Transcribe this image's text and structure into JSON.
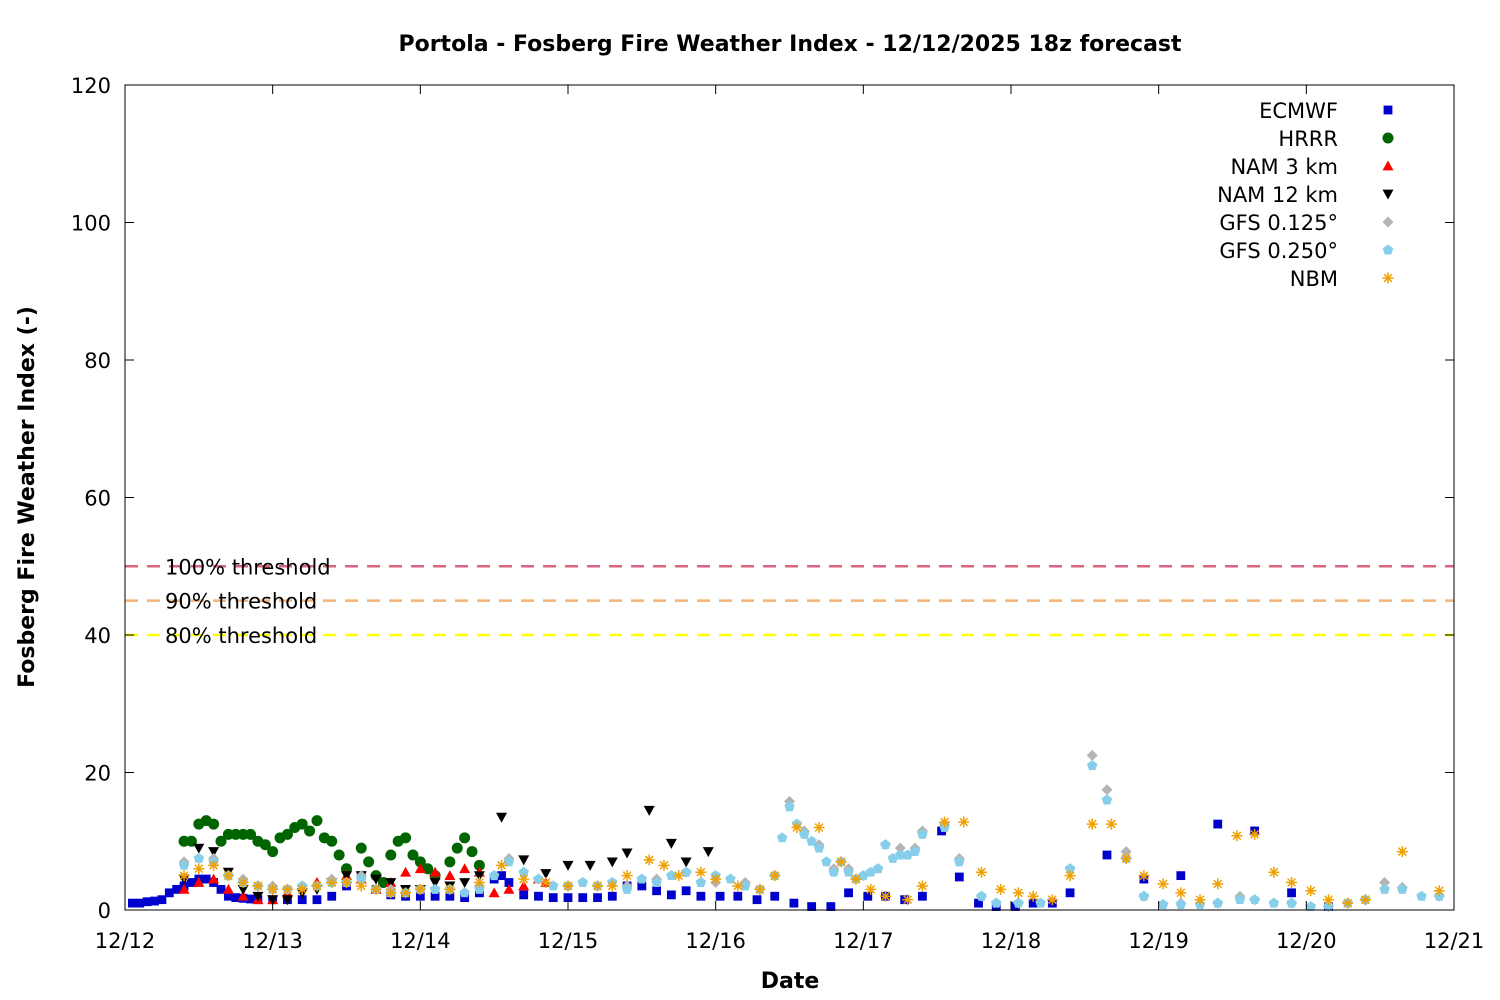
{
  "chart_data": {
    "type": "scatter",
    "title": "Portola - Fosberg Fire Weather Index - 12/12/2025 18z forecast",
    "xlabel": "Date",
    "ylabel": "Fosberg Fire Weather Index (-)",
    "xlim": [
      12,
      21
    ],
    "xticks": [
      {
        "value": 12,
        "label": "12/12"
      },
      {
        "value": 13,
        "label": "12/13"
      },
      {
        "value": 14,
        "label": "12/14"
      },
      {
        "value": 15,
        "label": "12/15"
      },
      {
        "value": 16,
        "label": "12/16"
      },
      {
        "value": 17,
        "label": "12/17"
      },
      {
        "value": 18,
        "label": "12/18"
      },
      {
        "value": 19,
        "label": "12/19"
      },
      {
        "value": 20,
        "label": "12/20"
      },
      {
        "value": 21,
        "label": "12/21"
      }
    ],
    "ylim": [
      0,
      120
    ],
    "yticks": [
      0,
      20,
      40,
      60,
      80,
      100,
      120
    ],
    "legend": "upper right",
    "thresholds": [
      {
        "label": "100% threshold",
        "value": 50,
        "color": "#d9667f"
      },
      {
        "label": "90% threshold",
        "value": 45,
        "color": "#f2b478"
      },
      {
        "label": "80% threshold",
        "value": 40,
        "color": "#ffff00"
      }
    ],
    "series": [
      {
        "name": "ECMWF",
        "color": "#0000cc",
        "marker": "square",
        "x": [
          12.05,
          12.1,
          12.15,
          12.2,
          12.25,
          12.3,
          12.35,
          12.4,
          12.45,
          12.5,
          12.55,
          12.6,
          12.65,
          12.7,
          12.75,
          12.8,
          12.85,
          12.9,
          13.0,
          13.1,
          13.2,
          13.3,
          13.4,
          13.5,
          13.6,
          13.7,
          13.8,
          13.9,
          14.0,
          14.1,
          14.2,
          14.3,
          14.4,
          14.5,
          14.55,
          14.6,
          14.7,
          14.8,
          14.9,
          15.0,
          15.1,
          15.2,
          15.3,
          15.4,
          15.5,
          15.6,
          15.7,
          15.8,
          15.9,
          16.03,
          16.15,
          16.28,
          16.4,
          16.53,
          16.65,
          16.78,
          16.9,
          17.03,
          17.15,
          17.28,
          17.4,
          17.53,
          17.65,
          17.78,
          17.9,
          18.03,
          18.15,
          18.28,
          18.4,
          18.65,
          18.9,
          19.15,
          19.4,
          19.65,
          19.9,
          20.15
        ],
        "values": [
          1,
          1,
          1.2,
          1.3,
          1.5,
          2.5,
          3,
          3.5,
          4,
          4.5,
          4.5,
          4,
          3,
          2,
          1.8,
          1.7,
          1.6,
          1.5,
          1.5,
          1.5,
          1.5,
          1.5,
          2,
          3.5,
          5,
          3,
          2.2,
          2,
          2,
          2,
          2,
          1.8,
          2.5,
          4.5,
          5,
          4,
          2.2,
          2,
          1.8,
          1.8,
          1.8,
          1.8,
          2,
          3.5,
          3.5,
          2.8,
          2.2,
          2.8,
          2,
          2,
          2,
          1.5,
          2,
          1,
          0.5,
          0.5,
          2.5,
          2,
          2,
          1.5,
          2,
          11.5,
          4.8,
          1,
          0.5,
          0.5,
          1,
          1,
          2.5,
          8,
          4.5,
          5,
          12.5,
          11.5,
          2.5,
          0.5
        ]
      },
      {
        "name": "HRRR",
        "color": "#006400",
        "marker": "circle",
        "x": [
          12.4,
          12.45,
          12.5,
          12.55,
          12.6,
          12.65,
          12.7,
          12.75,
          12.8,
          12.85,
          12.9,
          12.95,
          13.0,
          13.05,
          13.1,
          13.15,
          13.2,
          13.25,
          13.3,
          13.35,
          13.4,
          13.45,
          13.5,
          13.6,
          13.65,
          13.7,
          13.75,
          13.8,
          13.85,
          13.9,
          13.95,
          14.0,
          14.05,
          14.1,
          14.2,
          14.25,
          14.3,
          14.35,
          14.4
        ],
        "values": [
          10,
          10,
          12.5,
          13,
          12.5,
          10,
          11,
          11,
          11,
          11,
          10,
          9.5,
          8.5,
          10.5,
          11,
          12,
          12.5,
          11.5,
          13,
          10.5,
          10,
          8,
          6,
          9,
          7,
          5,
          4,
          8,
          10,
          10.5,
          8,
          7,
          6,
          5,
          7,
          9,
          10.5,
          8.5,
          6.5
        ]
      },
      {
        "name": "NAM 3 km",
        "color": "#ff0000",
        "marker": "triangle-up",
        "x": [
          12.4,
          12.5,
          12.6,
          12.7,
          12.8,
          12.9,
          13.0,
          13.1,
          13.2,
          13.3,
          13.4,
          13.5,
          13.6,
          13.7,
          13.8,
          13.9,
          14.0,
          14.1,
          14.2,
          14.3,
          14.4,
          14.5,
          14.6,
          14.7,
          14.8,
          14.85
        ],
        "values": [
          3,
          4,
          4.5,
          3,
          2,
          1.5,
          1.5,
          2.5,
          3.5,
          4,
          4.5,
          5,
          4.5,
          3,
          4,
          5.5,
          6,
          5.5,
          5,
          6,
          5.5,
          2.5,
          3,
          3.5,
          4.5,
          4
        ]
      },
      {
        "name": "NAM 12 km",
        "color": "#000000",
        "marker": "triangle-down",
        "x": [
          12.4,
          12.5,
          12.6,
          12.7,
          12.8,
          12.9,
          13.0,
          13.1,
          13.2,
          13.3,
          13.4,
          13.5,
          13.6,
          13.7,
          13.8,
          13.9,
          14.0,
          14.1,
          14.2,
          14.3,
          14.4,
          14.55,
          14.7,
          14.85,
          15.0,
          15.15,
          15.3,
          15.4,
          15.55,
          15.7,
          15.8,
          15.95
        ],
        "values": [
          4.5,
          9,
          8.5,
          5.5,
          3,
          2,
          1.5,
          1.5,
          2.5,
          3,
          4,
          5,
          5,
          4.5,
          4,
          3,
          3,
          4,
          3.5,
          4,
          5,
          13.5,
          7.3,
          5.3,
          6.5,
          6.5,
          7,
          8.3,
          14.5,
          9.7,
          7,
          8.5
        ]
      },
      {
        "name": "GFS 0.125°",
        "color": "#b4b4b4",
        "marker": "diamond",
        "x": [
          12.4,
          12.6,
          12.8,
          13.0,
          13.2,
          13.4,
          13.6,
          13.8,
          14.0,
          14.2,
          14.4,
          14.6,
          14.8,
          15.0,
          15.2,
          15.4,
          15.6,
          15.8,
          16.0,
          16.2,
          16.4,
          16.5,
          16.6,
          16.7,
          16.8,
          16.9,
          17.0,
          17.15,
          17.25,
          17.35,
          17.4,
          17.55,
          17.65,
          17.8,
          18.05,
          18.4,
          18.55,
          18.65,
          18.78,
          18.9,
          19.15,
          19.4,
          19.55,
          19.65,
          19.9,
          20.15,
          20.4,
          20.53,
          20.65,
          20.9
        ],
        "values": [
          7,
          7.5,
          4.5,
          3.5,
          3.5,
          4.5,
          5,
          3,
          3,
          3,
          3.5,
          7.5,
          4.5,
          3.5,
          3.5,
          3.5,
          4.5,
          5.5,
          4,
          4,
          5,
          15.8,
          11.5,
          9.5,
          6,
          6,
          5,
          9.5,
          9,
          9,
          11.5,
          12.5,
          7.5,
          2,
          1,
          6,
          22.5,
          17.5,
          8.5,
          2,
          1,
          1,
          2,
          1.5,
          1,
          0.5,
          1.5,
          4,
          3.3,
          2
        ]
      },
      {
        "name": "GFS 0.250°",
        "color": "#87ceeb",
        "marker": "pentagon",
        "x": [
          12.4,
          12.5,
          12.6,
          12.7,
          12.8,
          12.9,
          13.0,
          13.1,
          13.2,
          13.3,
          13.4,
          13.5,
          13.6,
          13.7,
          13.8,
          13.9,
          14.0,
          14.1,
          14.2,
          14.3,
          14.4,
          14.5,
          14.6,
          14.7,
          14.8,
          14.9,
          15.0,
          15.1,
          15.2,
          15.3,
          15.4,
          15.5,
          15.6,
          15.7,
          15.8,
          15.9,
          16.0,
          16.1,
          16.2,
          16.3,
          16.4,
          16.45,
          16.5,
          16.55,
          16.6,
          16.65,
          16.7,
          16.75,
          16.8,
          16.85,
          16.9,
          16.95,
          17.0,
          17.05,
          17.1,
          17.15,
          17.2,
          17.25,
          17.3,
          17.35,
          17.4,
          17.55,
          17.65,
          17.8,
          17.9,
          18.05,
          18.2,
          18.4,
          18.55,
          18.65,
          18.78,
          18.9,
          19.03,
          19.15,
          19.28,
          19.4,
          19.55,
          19.65,
          19.78,
          19.9,
          20.03,
          20.15,
          20.28,
          20.4,
          20.53,
          20.65,
          20.78,
          20.9
        ],
        "values": [
          6.5,
          7.5,
          7,
          5,
          4,
          3.5,
          3,
          3,
          3.5,
          3.5,
          4,
          4,
          4.5,
          3,
          2.5,
          2.5,
          3,
          3,
          3,
          2.5,
          3,
          5,
          7,
          5.5,
          4.5,
          3.5,
          3.5,
          4,
          3.5,
          4,
          3,
          4.5,
          4,
          5,
          5.5,
          4,
          5,
          4.5,
          3.5,
          3,
          5,
          10.5,
          15,
          12.5,
          11,
          10,
          9,
          7,
          5.5,
          7,
          5.5,
          4.5,
          5,
          5.5,
          6,
          9.5,
          7.5,
          8,
          8,
          8.5,
          11,
          12,
          7,
          2,
          1,
          1,
          1,
          6,
          21,
          16,
          7.5,
          2,
          0.8,
          0.8,
          0.8,
          1,
          1.5,
          1.5,
          1,
          1,
          0.5,
          0.5,
          1,
          1.5,
          3,
          3,
          2,
          2
        ]
      },
      {
        "name": "NBM",
        "color": "#f0a000",
        "marker": "asterisk",
        "x": [
          12.4,
          12.5,
          12.6,
          12.7,
          12.8,
          12.9,
          13.0,
          13.1,
          13.2,
          13.3,
          13.4,
          13.5,
          13.6,
          13.7,
          13.8,
          13.9,
          14.0,
          14.2,
          14.4,
          14.55,
          14.7,
          14.85,
          15.0,
          15.2,
          15.3,
          15.4,
          15.55,
          15.65,
          15.75,
          15.9,
          16.0,
          16.15,
          16.3,
          16.4,
          16.55,
          16.7,
          16.85,
          16.95,
          17.05,
          17.15,
          17.3,
          17.4,
          17.55,
          17.68,
          17.8,
          17.93,
          18.05,
          18.15,
          18.28,
          18.4,
          18.55,
          18.68,
          18.78,
          18.9,
          19.03,
          19.15,
          19.28,
          19.4,
          19.53,
          19.65,
          19.78,
          19.9,
          20.03,
          20.15,
          20.28,
          20.4,
          20.65,
          20.9
        ],
        "values": [
          5,
          6,
          6.5,
          5,
          4,
          3.5,
          3,
          3,
          3,
          3.5,
          4,
          4,
          3.5,
          3,
          2.5,
          2.5,
          3,
          3,
          4,
          6.5,
          4.5,
          4,
          3.5,
          3.5,
          3.5,
          5,
          7.3,
          6.5,
          5,
          5.5,
          4.5,
          3.5,
          3,
          5,
          12,
          12,
          7,
          4.5,
          3,
          2,
          1.5,
          3.5,
          12.8,
          12.8,
          5.5,
          3,
          2.5,
          2,
          1.5,
          5,
          12.5,
          12.5,
          7.5,
          5,
          3.8,
          2.5,
          1.5,
          3.8,
          10.8,
          11,
          5.5,
          4,
          2.8,
          1.5,
          1,
          1.5,
          8.5,
          2.8
        ]
      }
    ]
  }
}
